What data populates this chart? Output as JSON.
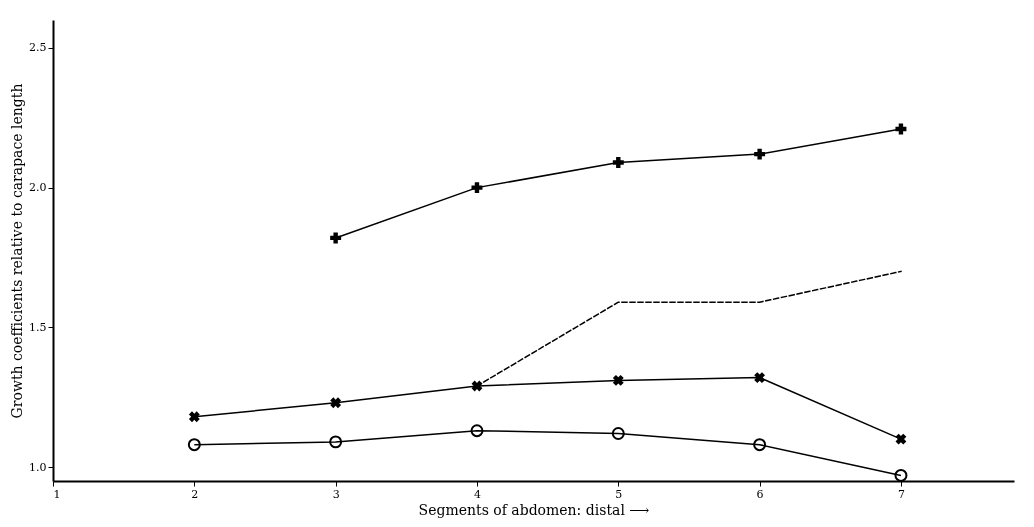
{
  "chart_data": {
    "type": "line",
    "xlabel": "Segments of abdomen: distal ⟶",
    "ylabel": "Growth coefficients relative to carapace length",
    "xlim": [
      1,
      7.8
    ],
    "xticks": [
      1,
      2,
      3,
      4,
      5,
      6,
      7
    ],
    "ylim": [
      0.95,
      2.6
    ],
    "yticks": [
      {
        "value": 1.0,
        "label": "1.0"
      },
      {
        "value": 1.5,
        "label": "1.5"
      },
      {
        "value": 2.0,
        "label": "2.0"
      },
      {
        "value": 2.5,
        "label": "2.5"
      }
    ],
    "grid": false,
    "series": [
      {
        "color": "#000000",
        "marker": "cross",
        "line_style": "solid",
        "x": [
          3,
          4,
          5,
          6,
          7
        ],
        "values": [
          1.82,
          2.0,
          2.09,
          2.12,
          2.21
        ]
      },
      {
        "color": "#000000",
        "marker": "none",
        "line_style": "dashed",
        "x": [
          4,
          5,
          6,
          7
        ],
        "values": [
          1.29,
          1.59,
          1.59,
          1.7
        ]
      },
      {
        "color": "#000000",
        "marker": "x",
        "line_style": "solid",
        "x": [
          2,
          3,
          4,
          5,
          6,
          7
        ],
        "values": [
          1.18,
          1.23,
          1.29,
          1.31,
          1.32,
          1.1
        ]
      },
      {
        "color": "#000000",
        "marker": "circle",
        "line_style": "solid",
        "x": [
          2,
          3,
          4,
          5,
          6,
          7
        ],
        "values": [
          1.08,
          1.09,
          1.13,
          1.12,
          1.08,
          0.97
        ]
      }
    ]
  }
}
